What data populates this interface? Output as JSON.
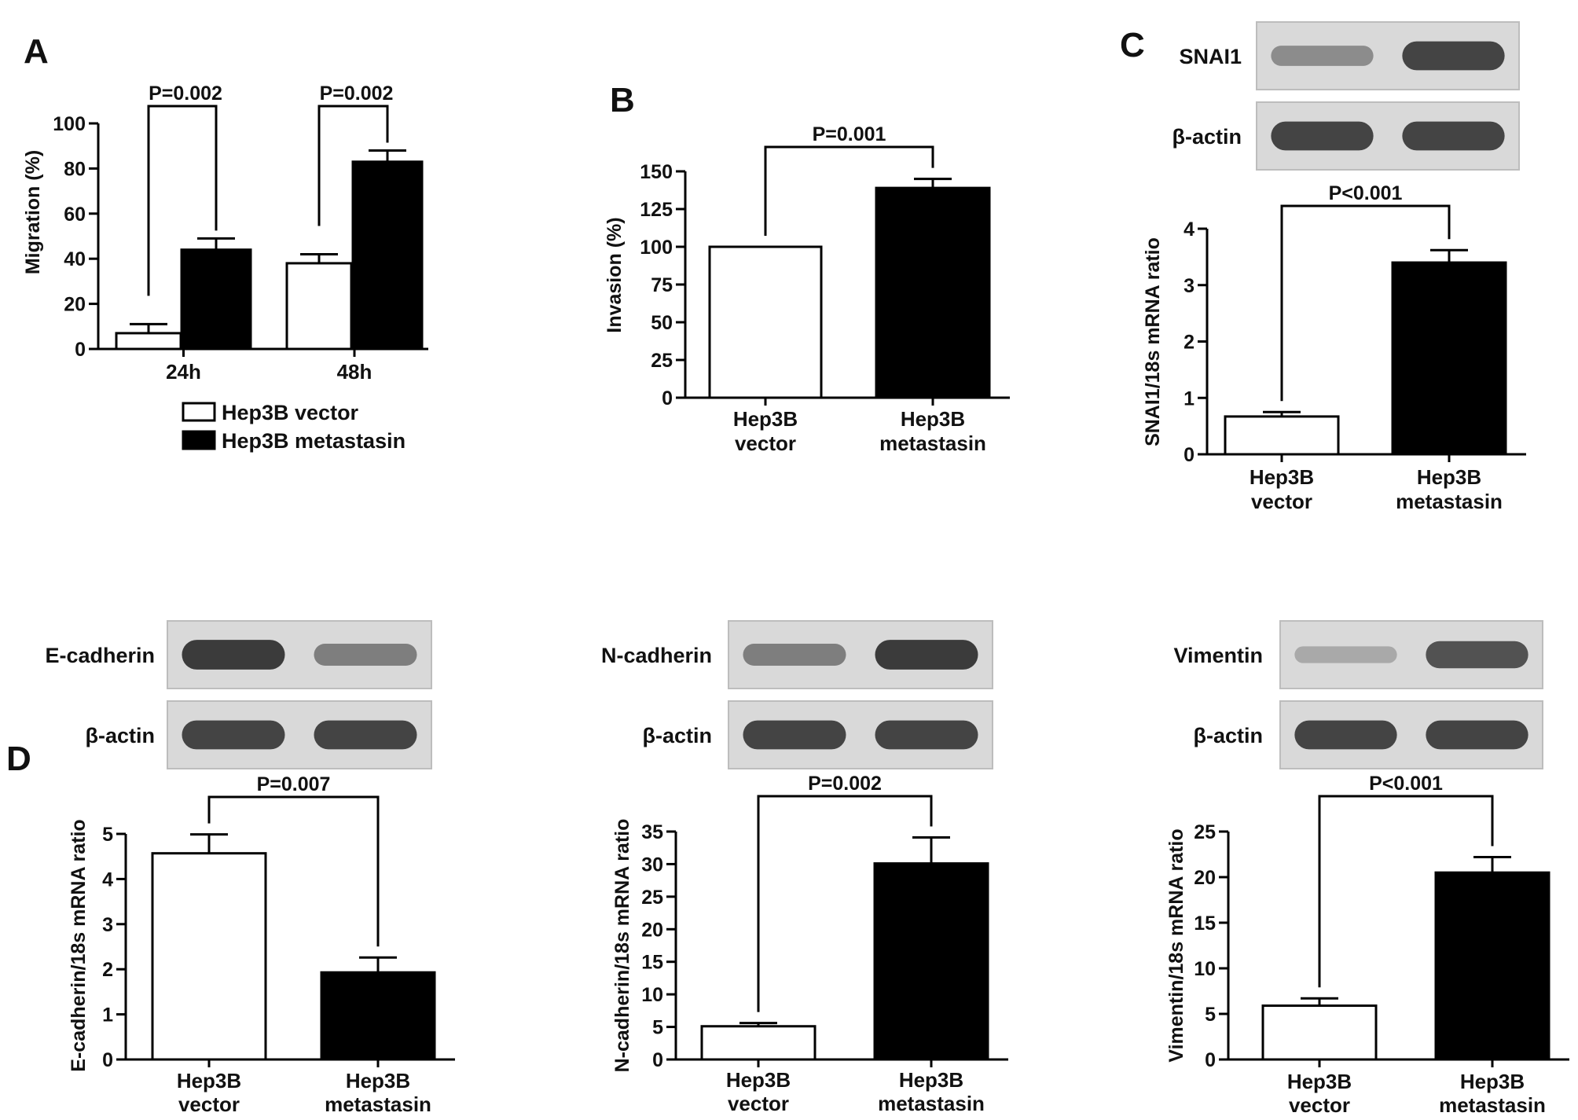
{
  "figure": {
    "legend": {
      "items": [
        {
          "label": "Hep3B vector",
          "fill": "#ffffff"
        },
        {
          "label": "Hep3B metastasin",
          "fill": "#000000"
        }
      ]
    }
  },
  "blots": [
    {
      "panel": "C",
      "label": "SNAI1",
      "bands": [
        0.35,
        0.85
      ]
    },
    {
      "panel": "C",
      "label": "β-actin",
      "bands": [
        0.85,
        0.85
      ]
    },
    {
      "panel": "D-E",
      "label": "E-cadherin",
      "bands": [
        0.9,
        0.45
      ]
    },
    {
      "panel": "D-E",
      "label": "β-actin",
      "bands": [
        0.85,
        0.85
      ]
    },
    {
      "panel": "D-N",
      "label": "N-cadherin",
      "bands": [
        0.45,
        0.9
      ]
    },
    {
      "panel": "D-N",
      "label": "β-actin",
      "bands": [
        0.85,
        0.85
      ]
    },
    {
      "panel": "D-V",
      "label": "Vimentin",
      "bands": [
        0.15,
        0.75
      ]
    },
    {
      "panel": "D-V",
      "label": "β-actin",
      "bands": [
        0.85,
        0.85
      ]
    }
  ],
  "colors": {
    "vector": "#ffffff",
    "metastasin": "#000000",
    "axis": "#000000",
    "blot_bg": "#d9d9d9",
    "band": "#2e2e2e"
  },
  "chart_data": [
    {
      "panel": "A",
      "type": "bar",
      "title": "",
      "xlabel": "",
      "ylabel": "Migration (%)",
      "ylim": [
        0,
        100
      ],
      "yticks": [
        0,
        20,
        40,
        60,
        80,
        100
      ],
      "categories": [
        "24h",
        "48h"
      ],
      "series": [
        {
          "name": "Hep3B vector",
          "values": [
            7,
            38
          ],
          "errors": [
            4,
            4
          ],
          "fill": "#ffffff"
        },
        {
          "name": "Hep3B metastasin",
          "values": [
            44,
            83
          ],
          "errors": [
            5,
            5
          ],
          "fill": "#000000"
        }
      ],
      "annotations": [
        {
          "text": "P=0.002",
          "category": "24h"
        },
        {
          "text": "P=0.002",
          "category": "48h"
        }
      ],
      "legend": "below",
      "grid": false
    },
    {
      "panel": "B",
      "type": "bar",
      "title": "",
      "xlabel": "",
      "ylabel": "Invasion (%)",
      "ylim": [
        0,
        150
      ],
      "yticks": [
        0,
        25,
        50,
        75,
        100,
        125,
        150
      ],
      "categories": [
        "Hep3B\nvector",
        "Hep3B\nmetastasin"
      ],
      "values": [
        100,
        139
      ],
      "errors": [
        0,
        6
      ],
      "annotations": [
        {
          "text": "P=0.001"
        }
      ],
      "grid": false
    },
    {
      "panel": "C",
      "type": "bar",
      "title": "",
      "xlabel": "",
      "ylabel": "SNAI1/18s mRNA ratio",
      "ylim": [
        0,
        4
      ],
      "yticks": [
        0,
        1,
        2,
        3,
        4
      ],
      "categories": [
        "Hep3B\nvector",
        "Hep3B\nmetastasin"
      ],
      "values": [
        0.67,
        3.4
      ],
      "errors": [
        0.08,
        0.22
      ],
      "annotations": [
        {
          "text": "P<0.001"
        }
      ],
      "grid": false
    },
    {
      "panel": "D-E",
      "type": "bar",
      "title": "",
      "xlabel": "",
      "ylabel": "E-cadherin/18s mRNA ratio",
      "ylim": [
        0,
        5
      ],
      "yticks": [
        0,
        1,
        2,
        3,
        4,
        5
      ],
      "categories": [
        "Hep3B\nvector",
        "Hep3B\nmetastasin"
      ],
      "values": [
        4.57,
        1.93
      ],
      "errors": [
        0.42,
        0.33
      ],
      "annotations": [
        {
          "text": "P=0.007"
        }
      ],
      "grid": false
    },
    {
      "panel": "D-N",
      "type": "bar",
      "title": "",
      "xlabel": "",
      "ylabel": "N-cadherin/18s mRNA ratio",
      "ylim": [
        0,
        35
      ],
      "yticks": [
        0,
        5,
        10,
        15,
        20,
        25,
        30,
        35
      ],
      "categories": [
        "Hep3B\nvector",
        "Hep3B\nmetastasin"
      ],
      "values": [
        5.1,
        30.1
      ],
      "errors": [
        0.5,
        4.0
      ],
      "annotations": [
        {
          "text": "P=0.002"
        }
      ],
      "grid": false
    },
    {
      "panel": "D-V",
      "type": "bar",
      "title": "",
      "xlabel": "",
      "ylabel": "Vimentin/18s mRNA ratio",
      "ylim": [
        0,
        25
      ],
      "yticks": [
        0,
        5,
        10,
        15,
        20,
        25
      ],
      "categories": [
        "Hep3B\nvector",
        "Hep3B\nmetastasin"
      ],
      "values": [
        5.9,
        20.5
      ],
      "errors": [
        0.8,
        1.7
      ],
      "annotations": [
        {
          "text": "P<0.001"
        }
      ],
      "grid": false
    }
  ]
}
